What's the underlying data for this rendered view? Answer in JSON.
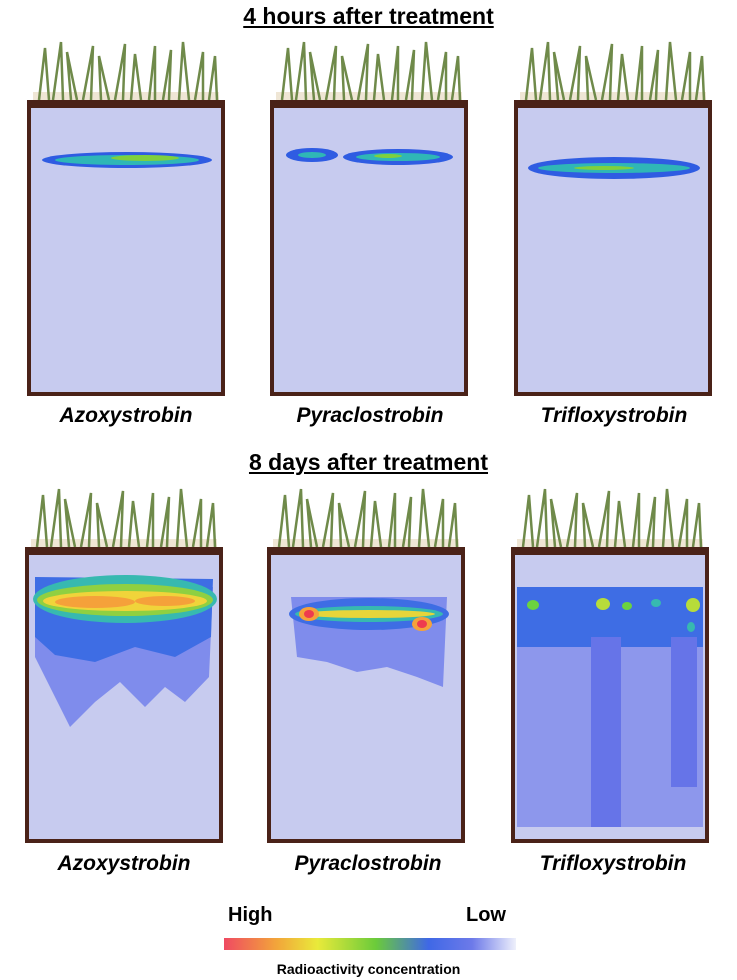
{
  "sections": [
    {
      "title": "4 hours after treatment",
      "panels": [
        {
          "label": "Azoxystrobin",
          "pattern": "thin-band"
        },
        {
          "label": "Pyraclostrobin",
          "pattern": "thin-band-gapped"
        },
        {
          "label": "Trifloxystrobin",
          "pattern": "thin-band"
        }
      ]
    },
    {
      "title": "8 days after treatment",
      "panels": [
        {
          "label": "Azoxystrobin",
          "pattern": "broad-high-diffuse"
        },
        {
          "label": "Pyraclostrobin",
          "pattern": "hotspots-band"
        },
        {
          "label": "Trifloxystrobin",
          "pattern": "spots-deep-leaching"
        }
      ]
    }
  ],
  "legend": {
    "high_label": "High",
    "low_label": "Low",
    "caption": "Radioactivity concentration",
    "colors": [
      "#ef4a62",
      "#f2a53a",
      "#e9ea3a",
      "#6bcb3a",
      "#3f68e6",
      "#6d7ae9",
      "#eef0fb"
    ]
  },
  "colors": {
    "soil_frame": "#4a2218",
    "grass": "#6f8a4a",
    "background_soil": "#c7cbef"
  }
}
